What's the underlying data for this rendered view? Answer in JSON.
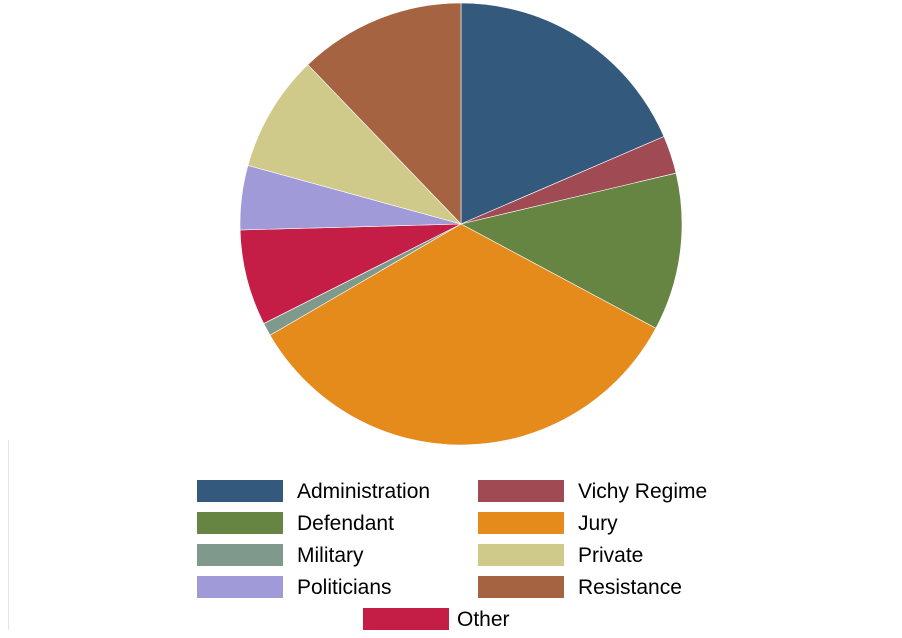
{
  "chart_data": {
    "type": "pie",
    "title": "",
    "start": "12 o'clock",
    "direction": "clockwise",
    "legend_position": "bottom",
    "slices": [
      {
        "label": "Administration",
        "value": 19.3,
        "color": "#33597d"
      },
      {
        "label": "Vichy Regime",
        "value": 2.9,
        "color": "#a04a54"
      },
      {
        "label": "Defendant",
        "value": 12.0,
        "color": "#668442"
      },
      {
        "label": "Jury",
        "value": 35.2,
        "color": "#e58b1b"
      },
      {
        "label": "Military",
        "value": 1.0,
        "color": "#80998d"
      },
      {
        "label": "Other",
        "value": 7.3,
        "color": "#c41e47"
      },
      {
        "label": "Politicians",
        "value": 4.9,
        "color": "#a09ad8"
      },
      {
        "label": "Private",
        "value": 8.9,
        "color": "#cfca8a"
      },
      {
        "label": "Resistance",
        "value": 12.7,
        "color": "#a66342"
      }
    ],
    "legend_order": [
      "Administration",
      "Vichy Regime",
      "Defendant",
      "Jury",
      "Military",
      "Private",
      "Politicians",
      "Resistance",
      "Other"
    ]
  }
}
